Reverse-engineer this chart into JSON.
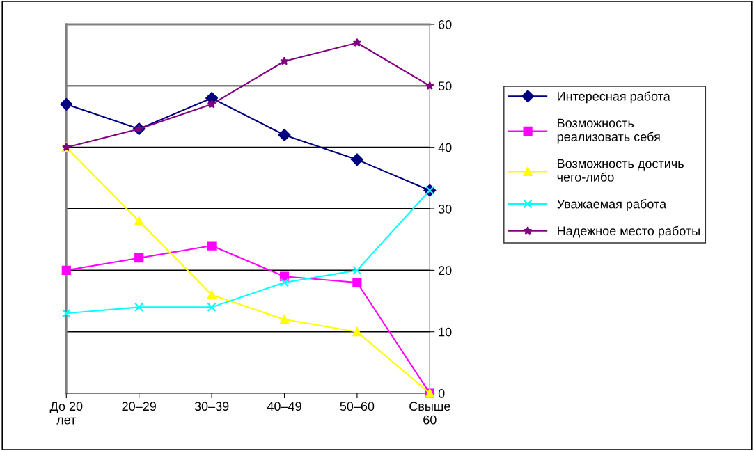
{
  "chart_data": {
    "type": "line",
    "categories": [
      "До 20\nлет",
      "20–29",
      "30–39",
      "40–49",
      "50–60",
      "Свыше\n60"
    ],
    "series": [
      {
        "name": "Интересная работа",
        "color": "#000080",
        "marker": "diamond",
        "values": [
          47,
          43,
          48,
          42,
          38,
          33
        ]
      },
      {
        "name": "Возможность\nреализовать себя",
        "color": "#ff00ff",
        "marker": "square",
        "values": [
          20,
          22,
          24,
          19,
          18,
          0
        ]
      },
      {
        "name": "Возможность достичь\nчего-либо",
        "color": "#ffff00",
        "marker": "triangle",
        "values": [
          40,
          28,
          16,
          12,
          10,
          0
        ]
      },
      {
        "name": "Уважаемая работа",
        "color": "#00ffff",
        "marker": "cross",
        "values": [
          13,
          14,
          14,
          18,
          20,
          33
        ]
      },
      {
        "name": "Надежное место работы",
        "color": "#800080",
        "marker": "star",
        "values": [
          40,
          43,
          47,
          54,
          57,
          50
        ]
      }
    ],
    "ylim": [
      0,
      60
    ],
    "yticks": [
      0,
      10,
      20,
      30,
      40,
      50,
      60
    ],
    "grid": "y",
    "legend": "right",
    "line_style": "solid"
  }
}
